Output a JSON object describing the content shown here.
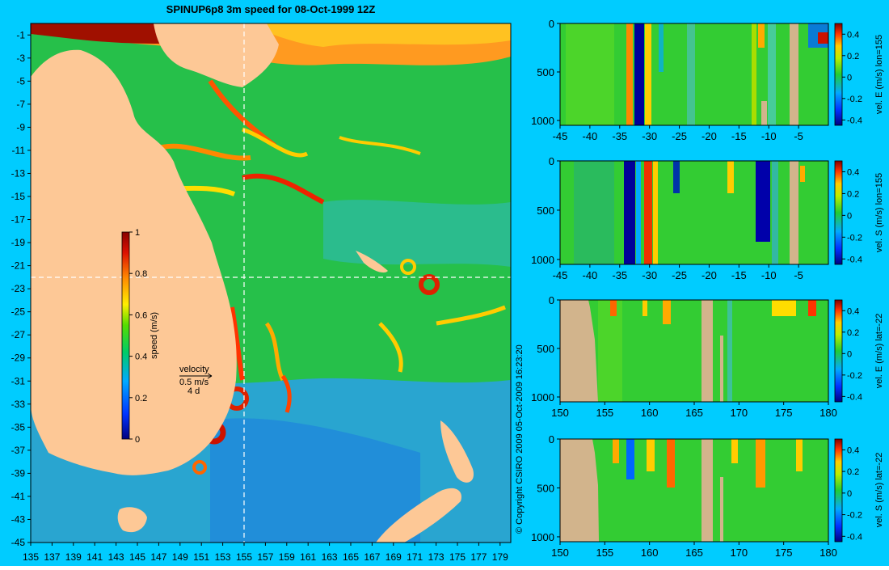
{
  "colors": {
    "background": "#00ccff",
    "land": "#fdc896",
    "section_land": "#d2b48c",
    "ocean_base": "#26c04a"
  },
  "main_map": {
    "title": "SPINUP6p8 3m speed for 08-Oct-1999 12Z",
    "copyright": "© Copyright CSIRO 2009   05-Oct-2009 16:23:20",
    "lat_ticks": [
      "-1",
      "-3",
      "-5",
      "-7",
      "-9",
      "-11",
      "-13",
      "-15",
      "-17",
      "-19",
      "-21",
      "-23",
      "-25",
      "-27",
      "-29",
      "-31",
      "-33",
      "-35",
      "-37",
      "-39",
      "-41",
      "-43",
      "-45"
    ],
    "lon_ticks": [
      "135",
      "137",
      "139",
      "141",
      "143",
      "145",
      "147",
      "149",
      "151",
      "153",
      "155",
      "157",
      "159",
      "161",
      "163",
      "165",
      "167",
      "169",
      "171",
      "173",
      "175",
      "177",
      "179"
    ],
    "xlim": [
      135,
      180
    ],
    "ylim": [
      -45,
      0
    ],
    "section_lon": 155,
    "section_lat": -22,
    "colorbar": {
      "label": "speed (m/s)",
      "ticks": [
        "1",
        "0.8",
        "0.6",
        "0.4",
        "0.2",
        "0"
      ],
      "range": [
        0,
        1
      ]
    },
    "velocity_legend": {
      "title": "velocity",
      "scale": "0.5 m/s",
      "duration": "4 d"
    }
  },
  "chart_data": [
    {
      "type": "heatmap",
      "title": "SPINUP6p8 3m speed for 08-Oct-1999 12Z",
      "x": "longitude",
      "xlim": [
        135,
        180
      ],
      "y": "latitude",
      "ylim": [
        -45,
        0
      ],
      "colorbar_label": "speed (m/s)",
      "colorbar_range": [
        0,
        1
      ]
    },
    {
      "type": "heatmap",
      "label": "vel. E (m/s) lon=155",
      "xlim": [
        -45,
        0
      ],
      "ylim": [
        0,
        1050
      ],
      "colorbar_range": [
        -0.4,
        0.4
      ]
    },
    {
      "type": "heatmap",
      "label": "vel. S (m/s) lon=155",
      "xlim": [
        -45,
        0
      ],
      "ylim": [
        0,
        1050
      ],
      "colorbar_range": [
        -0.4,
        0.4
      ]
    },
    {
      "type": "heatmap",
      "label": "vel. E (m/s) lat=-22",
      "xlim": [
        150,
        180
      ],
      "ylim": [
        0,
        1050
      ],
      "colorbar_range": [
        -0.4,
        0.4
      ]
    },
    {
      "type": "heatmap",
      "label": "vel. S (m/s) lat=-22",
      "xlim": [
        150,
        180
      ],
      "ylim": [
        0,
        1050
      ],
      "colorbar_range": [
        -0.4,
        0.4
      ]
    }
  ],
  "sections": [
    {
      "label": "vel. E (m/s) lon=155",
      "x_ticks": [
        "-45",
        "-40",
        "-35",
        "-30",
        "-25",
        "-20",
        "-15",
        "-10",
        "-5"
      ],
      "y_ticks": [
        "0",
        "500",
        "1000"
      ],
      "cbar_ticks": [
        "0.4",
        "0.2",
        "0",
        "-0.2",
        "-0.4"
      ]
    },
    {
      "label": "vel. S (m/s) lon=155",
      "x_ticks": [
        "-45",
        "-40",
        "-35",
        "-30",
        "-25",
        "-20",
        "-15",
        "-10",
        "-5"
      ],
      "y_ticks": [
        "0",
        "500",
        "1000"
      ],
      "cbar_ticks": [
        "0.4",
        "0.2",
        "0",
        "-0.2",
        "-0.4"
      ]
    },
    {
      "label": "vel. E (m/s) lat=-22",
      "x_ticks": [
        "150",
        "155",
        "160",
        "165",
        "170",
        "175",
        "180"
      ],
      "y_ticks": [
        "0",
        "500",
        "1000"
      ],
      "cbar_ticks": [
        "0.4",
        "0.2",
        "0",
        "-0.2",
        "-0.4"
      ]
    },
    {
      "label": "vel. S (m/s) lat=-22",
      "x_ticks": [
        "150",
        "155",
        "160",
        "165",
        "170",
        "175",
        "180"
      ],
      "y_ticks": [
        "0",
        "500",
        "1000"
      ],
      "cbar_ticks": [
        "0.4",
        "0.2",
        "0",
        "-0.2",
        "-0.4"
      ]
    }
  ]
}
